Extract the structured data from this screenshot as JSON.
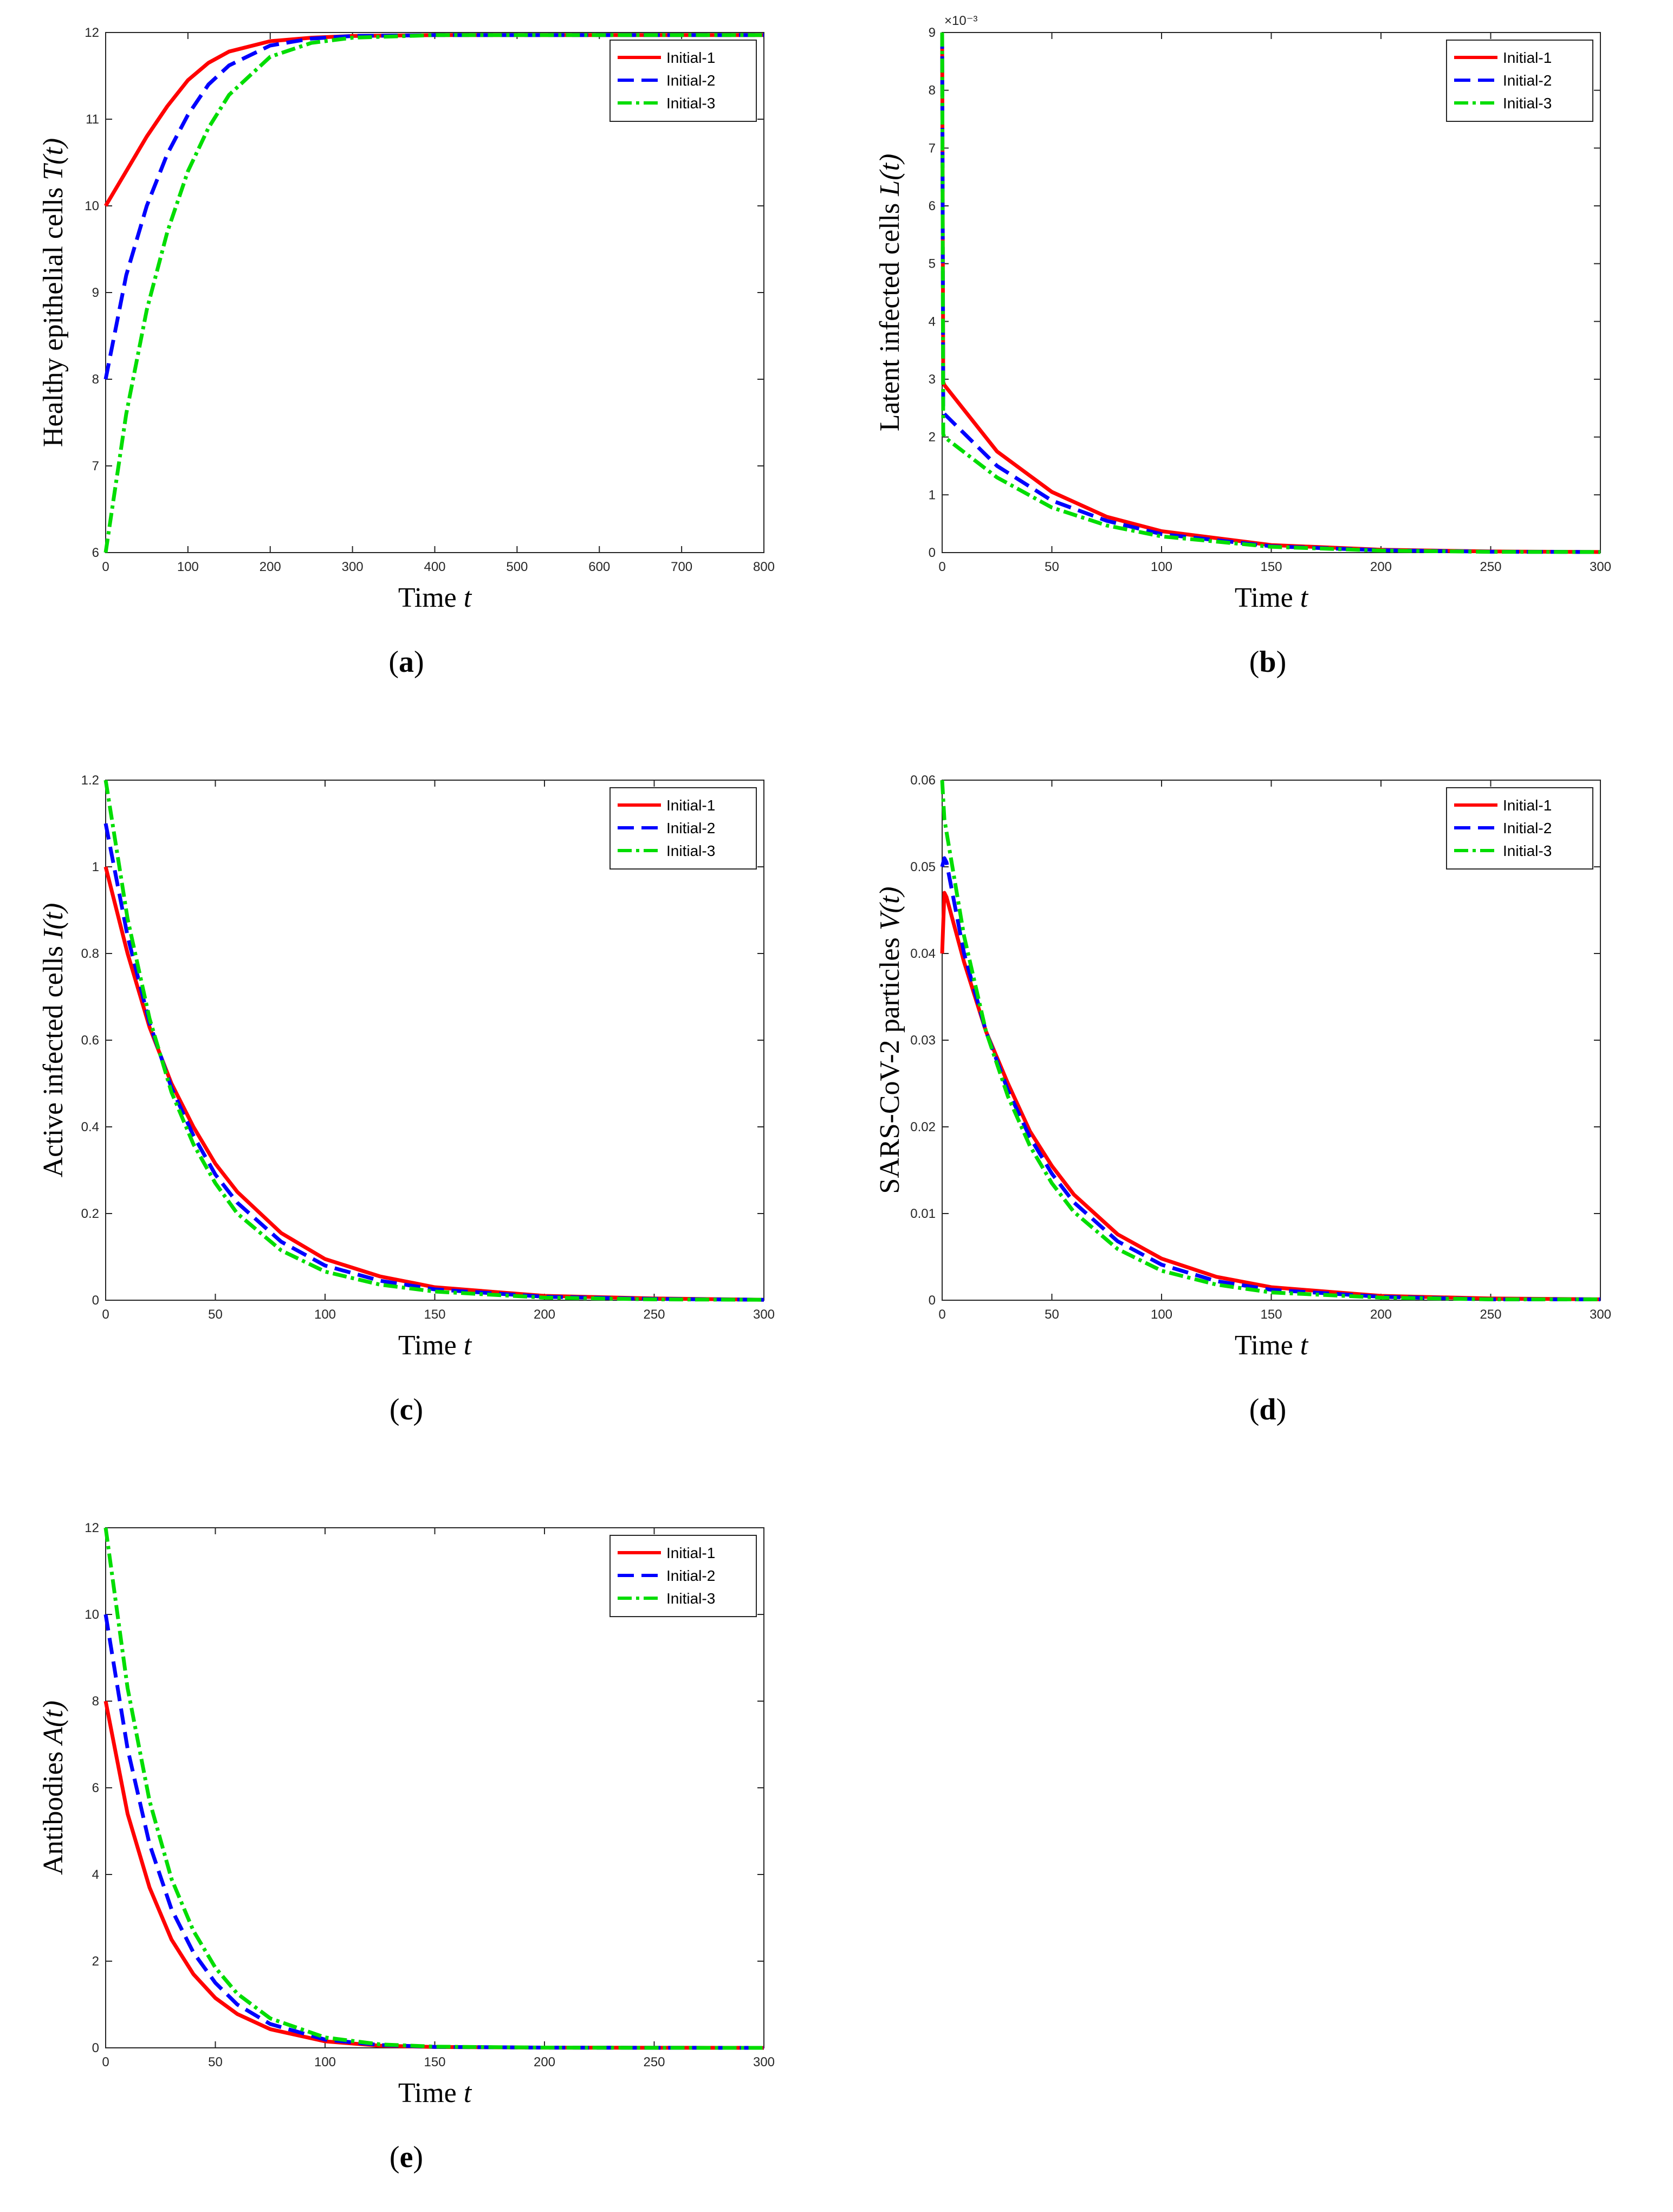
{
  "colors": {
    "initial1": "#ff0000",
    "initial2": "#0000ff",
    "initial3": "#00dd00"
  },
  "legend": [
    "Initial-1",
    "Initial-2",
    "Initial-3"
  ],
  "chart_data": [
    {
      "id": "a",
      "type": "line",
      "caption": "a",
      "xlabel_text": "Time ",
      "xlabel_var": "t",
      "ylabel_text": "Healthy epithelial cells ",
      "ylabel_var": "T(t)",
      "xlim": [
        0,
        800
      ],
      "ylim": [
        6,
        12
      ],
      "xticks": [
        0,
        100,
        200,
        300,
        400,
        500,
        600,
        700,
        800
      ],
      "yticks": [
        6,
        7,
        8,
        9,
        10,
        11,
        12
      ],
      "exponent_label": "",
      "series": [
        {
          "name": "Initial-1",
          "x": [
            0,
            25,
            50,
            75,
            100,
            125,
            150,
            200,
            250,
            300,
            400,
            500,
            800
          ],
          "y": [
            10,
            10.4,
            10.8,
            11.15,
            11.45,
            11.65,
            11.78,
            11.9,
            11.94,
            11.96,
            11.97,
            11.97,
            11.97
          ]
        },
        {
          "name": "Initial-2",
          "x": [
            0,
            25,
            50,
            75,
            100,
            125,
            150,
            200,
            250,
            300,
            400,
            500,
            800
          ],
          "y": [
            8,
            9.2,
            10.0,
            10.6,
            11.05,
            11.4,
            11.62,
            11.85,
            11.93,
            11.96,
            11.97,
            11.97,
            11.97
          ]
        },
        {
          "name": "Initial-3",
          "x": [
            0,
            25,
            50,
            75,
            100,
            125,
            150,
            200,
            250,
            300,
            400,
            500,
            800
          ],
          "y": [
            6,
            7.6,
            8.8,
            9.7,
            10.4,
            10.9,
            11.28,
            11.72,
            11.88,
            11.94,
            11.97,
            11.97,
            11.97
          ]
        }
      ]
    },
    {
      "id": "b",
      "type": "line",
      "caption": "b",
      "xlabel_text": "Time ",
      "xlabel_var": "t",
      "ylabel_text": "Latent infected cells ",
      "ylabel_var": "L(t)",
      "xlim": [
        0,
        300
      ],
      "ylim": [
        0,
        9
      ],
      "xticks": [
        0,
        50,
        100,
        150,
        200,
        250,
        300
      ],
      "yticks": [
        0,
        1,
        2,
        3,
        4,
        5,
        6,
        7,
        8,
        9
      ],
      "exponent_label": "×10⁻³",
      "series": [
        {
          "name": "Initial-1",
          "x": [
            0,
            0.5,
            1,
            25,
            50,
            75,
            100,
            150,
            200,
            250,
            300
          ],
          "y": [
            9,
            2.95,
            2.9,
            1.75,
            1.05,
            0.62,
            0.37,
            0.13,
            0.05,
            0.02,
            0.01
          ]
        },
        {
          "name": "Initial-2",
          "x": [
            0,
            0.5,
            1,
            25,
            50,
            75,
            100,
            150,
            200,
            250,
            300
          ],
          "y": [
            9,
            2.5,
            2.4,
            1.5,
            0.9,
            0.55,
            0.32,
            0.11,
            0.04,
            0.015,
            0.01
          ]
        },
        {
          "name": "Initial-3",
          "x": [
            0,
            0.5,
            1,
            25,
            50,
            75,
            100,
            150,
            200,
            250,
            300
          ],
          "y": [
            9,
            2.05,
            2.0,
            1.3,
            0.78,
            0.47,
            0.28,
            0.1,
            0.035,
            0.013,
            0.01
          ]
        }
      ]
    },
    {
      "id": "c",
      "type": "line",
      "caption": "c",
      "xlabel_text": "Time ",
      "xlabel_var": "t",
      "ylabel_text": "Active infected cells ",
      "ylabel_var": "I(t)",
      "xlim": [
        0,
        300
      ],
      "ylim": [
        0,
        1.2
      ],
      "xticks": [
        0,
        50,
        100,
        150,
        200,
        250,
        300
      ],
      "yticks": [
        0,
        0.2,
        0.4,
        0.6,
        0.8,
        1,
        1.2
      ],
      "exponent_label": "",
      "series": [
        {
          "name": "Initial-1",
          "x": [
            0,
            10,
            20,
            30,
            40,
            50,
            60,
            80,
            100,
            125,
            150,
            200,
            250,
            300
          ],
          "y": [
            1.0,
            0.8,
            0.63,
            0.5,
            0.4,
            0.315,
            0.25,
            0.155,
            0.095,
            0.055,
            0.03,
            0.01,
            0.004,
            0.001
          ]
        },
        {
          "name": "Initial-2",
          "x": [
            0,
            10,
            20,
            30,
            40,
            50,
            60,
            80,
            100,
            125,
            150,
            200,
            250,
            300
          ],
          "y": [
            1.1,
            0.84,
            0.64,
            0.49,
            0.38,
            0.29,
            0.225,
            0.135,
            0.08,
            0.045,
            0.025,
            0.008,
            0.003,
            0.001
          ]
        },
        {
          "name": "Initial-3",
          "x": [
            0,
            10,
            20,
            30,
            40,
            50,
            60,
            80,
            100,
            125,
            150,
            200,
            250,
            300
          ],
          "y": [
            1.2,
            0.88,
            0.65,
            0.48,
            0.36,
            0.27,
            0.2,
            0.115,
            0.066,
            0.036,
            0.02,
            0.006,
            0.002,
            0.001
          ]
        }
      ]
    },
    {
      "id": "d",
      "type": "line",
      "caption": "d",
      "xlabel_text": "Time ",
      "xlabel_var": "t",
      "ylabel_text": "SARS-CoV-2 particles ",
      "ylabel_var": "V(t)",
      "xlim": [
        0,
        300
      ],
      "ylim": [
        0,
        0.06
      ],
      "xticks": [
        0,
        50,
        100,
        150,
        200,
        250,
        300
      ],
      "yticks": [
        0,
        0.01,
        0.02,
        0.03,
        0.04,
        0.05,
        0.06
      ],
      "exponent_label": "",
      "series": [
        {
          "name": "Initial-1",
          "x": [
            0,
            1,
            2,
            10,
            20,
            30,
            40,
            50,
            60,
            80,
            100,
            125,
            150,
            200,
            250,
            300
          ],
          "y": [
            0.04,
            0.047,
            0.0465,
            0.039,
            0.031,
            0.025,
            0.0195,
            0.0155,
            0.0122,
            0.0076,
            0.0048,
            0.0027,
            0.0015,
            0.0005,
            0.0002,
            0.0001
          ]
        },
        {
          "name": "Initial-2",
          "x": [
            0,
            1,
            2,
            10,
            20,
            30,
            40,
            50,
            60,
            80,
            100,
            125,
            150,
            200,
            250,
            300
          ],
          "y": [
            0.05,
            0.051,
            0.0505,
            0.04,
            0.031,
            0.0242,
            0.0188,
            0.0146,
            0.0113,
            0.0068,
            0.0041,
            0.0022,
            0.0012,
            0.0004,
            0.0001,
            0.0001
          ]
        },
        {
          "name": "Initial-3",
          "x": [
            0,
            1,
            2,
            10,
            20,
            30,
            40,
            50,
            60,
            80,
            100,
            125,
            150,
            200,
            250,
            300
          ],
          "y": [
            0.06,
            0.0555,
            0.054,
            0.042,
            0.031,
            0.0235,
            0.0178,
            0.0135,
            0.0102,
            0.0059,
            0.0034,
            0.0018,
            0.0009,
            0.0003,
            0.0001,
            0.0001
          ]
        }
      ]
    },
    {
      "id": "e",
      "type": "line",
      "caption": "e",
      "xlabel_text": "Time ",
      "xlabel_var": "t",
      "ylabel_text": "Antibodies ",
      "ylabel_var": "A(t)",
      "xlim": [
        0,
        300
      ],
      "ylim": [
        0,
        12
      ],
      "xticks": [
        0,
        50,
        100,
        150,
        200,
        250,
        300
      ],
      "yticks": [
        0,
        2,
        4,
        6,
        8,
        10,
        12
      ],
      "exponent_label": "",
      "series": [
        {
          "name": "Initial-1",
          "x": [
            0,
            10,
            20,
            30,
            40,
            50,
            60,
            75,
            100,
            125,
            150,
            200,
            250,
            300
          ],
          "y": [
            8,
            5.4,
            3.7,
            2.5,
            1.7,
            1.15,
            0.78,
            0.43,
            0.15,
            0.05,
            0.02,
            0.005,
            0.001,
            0
          ]
        },
        {
          "name": "Initial-2",
          "x": [
            0,
            10,
            20,
            30,
            40,
            50,
            60,
            75,
            100,
            125,
            150,
            200,
            250,
            300
          ],
          "y": [
            10,
            6.9,
            4.7,
            3.2,
            2.2,
            1.5,
            1.0,
            0.55,
            0.19,
            0.065,
            0.022,
            0.005,
            0.001,
            0
          ]
        },
        {
          "name": "Initial-3",
          "x": [
            0,
            10,
            20,
            30,
            40,
            50,
            60,
            75,
            100,
            125,
            150,
            200,
            250,
            300
          ],
          "y": [
            12,
            8.3,
            5.7,
            3.9,
            2.7,
            1.85,
            1.25,
            0.68,
            0.24,
            0.08,
            0.028,
            0.006,
            0.001,
            0
          ]
        }
      ]
    }
  ]
}
